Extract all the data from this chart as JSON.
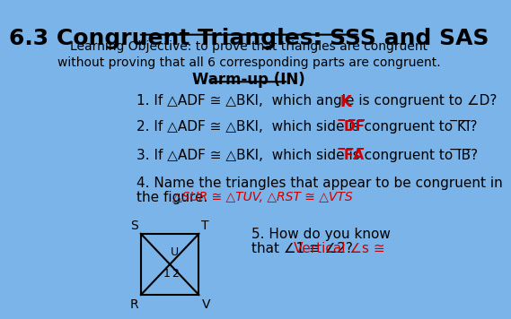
{
  "bg_color": "#7ab4e8",
  "title": "6.3 Congruent Triangles: SSS and SAS",
  "title_fontsize": 18,
  "title_color": "#000000",
  "subtitle": "Learning Objective: to prove that triangles are congruent\nwithout proving that all 6 corresponding parts are congruent.",
  "subtitle_fontsize": 10,
  "warmup_title": "Warm-up (IN)",
  "warmup_fontsize": 12,
  "line1_black": "1. If △ADF ≅ △BKI,  which angle is congruent to ∠D? ",
  "line1_red": "K",
  "line2_black": "2. If △ADF ≅ △BKI,  which side is congruent to ̅K̅I̅? ",
  "line2_red": "̅D̅F̅",
  "line3_black": "3. If △ADF ≅ △BKI,  which side is congruent to ̅I̅B̅? ",
  "line3_red": "̅F̅A̅",
  "line4_black": "4. Name the triangles that appear to be congruent in\nthe figure. ",
  "line4_red": "△SUR ≅ △TUV, △RST ≅ △VTS",
  "line5_black": "5. How do you know\n    that ∠1 ≅ ∠2? ",
  "line5_red": "Vertical ∠s ≅",
  "text_fontsize": 11,
  "red_color": "#cc0000",
  "black_color": "#000000"
}
